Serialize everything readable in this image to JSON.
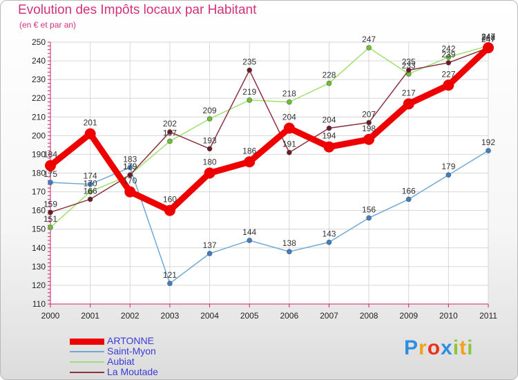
{
  "chart_data": {
    "type": "line",
    "title": "Evolution des Impôts locaux par Habitant",
    "subtitle": "(en € et par an)",
    "xlabel": "",
    "ylabel": "",
    "categories": [
      "2000",
      "2001",
      "2002",
      "2003",
      "2004",
      "2005",
      "2006",
      "2007",
      "2008",
      "2009",
      "2010",
      "2011"
    ],
    "ylim": [
      110,
      250
    ],
    "yticks": [
      "110",
      "120",
      "130",
      "140",
      "150",
      "160",
      "170",
      "180",
      "190",
      "200",
      "210",
      "220",
      "230",
      "240",
      "250"
    ],
    "grid": true,
    "legend_position": "bottom-left",
    "series": [
      {
        "name": "Saint-Myon",
        "color": "#6fa8d6",
        "marker": "#3d7fc4",
        "values": [
          175,
          174,
          183,
          121,
          137,
          144,
          138,
          143,
          156,
          166,
          179,
          192
        ]
      },
      {
        "name": "Aubiat",
        "color": "#9ee06e",
        "marker": "#6cc12e",
        "values": [
          151,
          170,
          179,
          197,
          209,
          219,
          218,
          228,
          247,
          233,
          242,
          248
        ]
      },
      {
        "name": "La Moutade",
        "color": "#8a2f3e",
        "marker": "#6d1a25",
        "values": [
          159,
          166,
          179,
          202,
          193,
          235,
          191,
          204,
          207,
          235,
          239,
          247
        ]
      },
      {
        "name": "ARTONNE",
        "color": "#ee0000",
        "marker": "#ee0000",
        "values": [
          184,
          201,
          170,
          160,
          180,
          186,
          204,
          194,
          198,
          217,
          227,
          247
        ]
      }
    ]
  },
  "legend": {
    "items": [
      {
        "name": "ARTONNE",
        "color": "#ee0000"
      },
      {
        "name": "Saint-Myon",
        "color": "#6fa8d6"
      },
      {
        "name": "Aubiat",
        "color": "#9ee06e"
      },
      {
        "name": "La Moutade",
        "color": "#8a2f3e"
      }
    ]
  },
  "brand": {
    "letters": [
      "P",
      "r",
      "o",
      "x",
      "i",
      "t",
      "i"
    ],
    "colors": [
      "#2e8fe0",
      "#f0a21a",
      "#e8331e",
      "#2e8fe0",
      "#8cc63f",
      "#f0a21a",
      "#8cc63f"
    ]
  }
}
